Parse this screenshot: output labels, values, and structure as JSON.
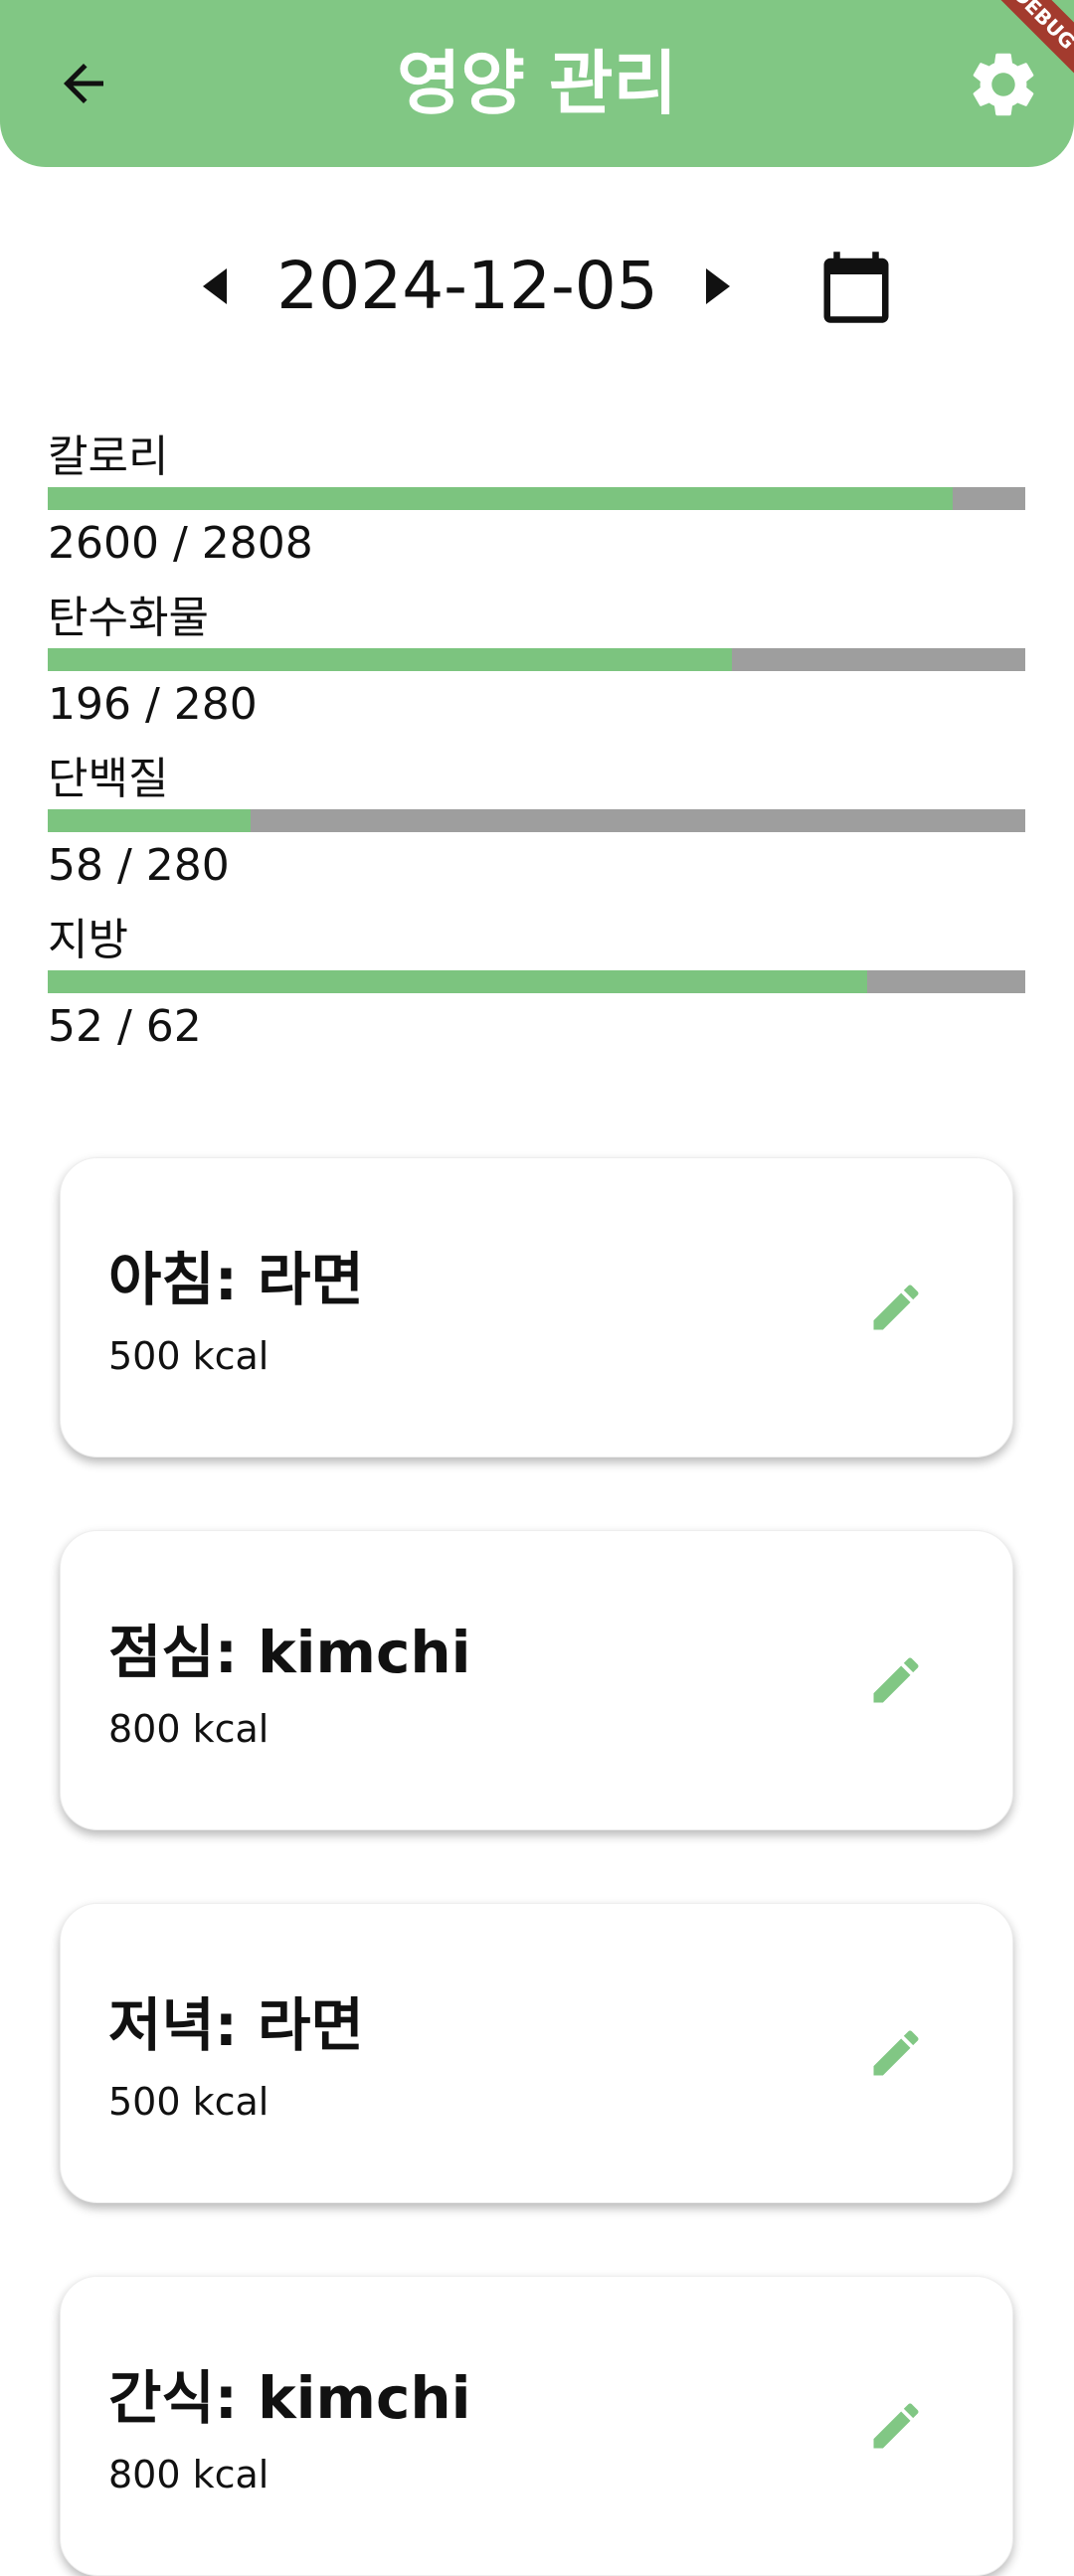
{
  "header": {
    "title": "영양 관리"
  },
  "debug_banner": "DEBUG",
  "date": "2024-12-05",
  "nutrients": [
    {
      "label": "칼로리",
      "current": 2600,
      "goal": 2808,
      "progress_label": "2600 / 2808"
    },
    {
      "label": "탄수화물",
      "current": 196,
      "goal": 280,
      "progress_label": "196 / 280"
    },
    {
      "label": "단백질",
      "current": 58,
      "goal": 280,
      "progress_label": "58 / 280"
    },
    {
      "label": "지방",
      "current": 52,
      "goal": 62,
      "progress_label": "52 / 62"
    }
  ],
  "meals": [
    {
      "title": "아침: 라면",
      "calories": "500 kcal"
    },
    {
      "title": "점심: kimchi",
      "calories": "800 kcal"
    },
    {
      "title": "저녁: 라면",
      "calories": "500 kcal"
    },
    {
      "title": "간식: kimchi",
      "calories": "800 kcal"
    }
  ]
}
